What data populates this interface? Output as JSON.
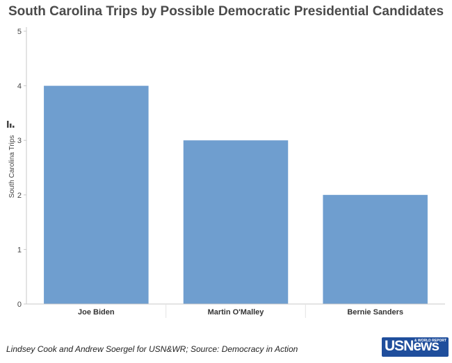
{
  "title": "South Carolina Trips by Possible Democratic Presidential Candidates",
  "credit": "Lindsey Cook and Andrew Soergel for USN&WR; Source: Democracy in Action",
  "logo": {
    "main": "USNews",
    "sub": "& WORLD REPORT"
  },
  "colors": {
    "bar": "#6f9ecf",
    "axis": "#c8c8c8"
  },
  "chart_data": {
    "type": "bar",
    "title": "South Carolina Trips by Possible Democratic Presidential Candidates",
    "xlabel": "",
    "ylabel": "South Carolina Trips",
    "categories": [
      "Joe Biden",
      "Martin O'Malley",
      "Bernie Sanders"
    ],
    "values": [
      4,
      3,
      2
    ],
    "ylim": [
      0,
      5
    ],
    "yticks": [
      0,
      1,
      2,
      3,
      4,
      5
    ],
    "grid": false
  }
}
